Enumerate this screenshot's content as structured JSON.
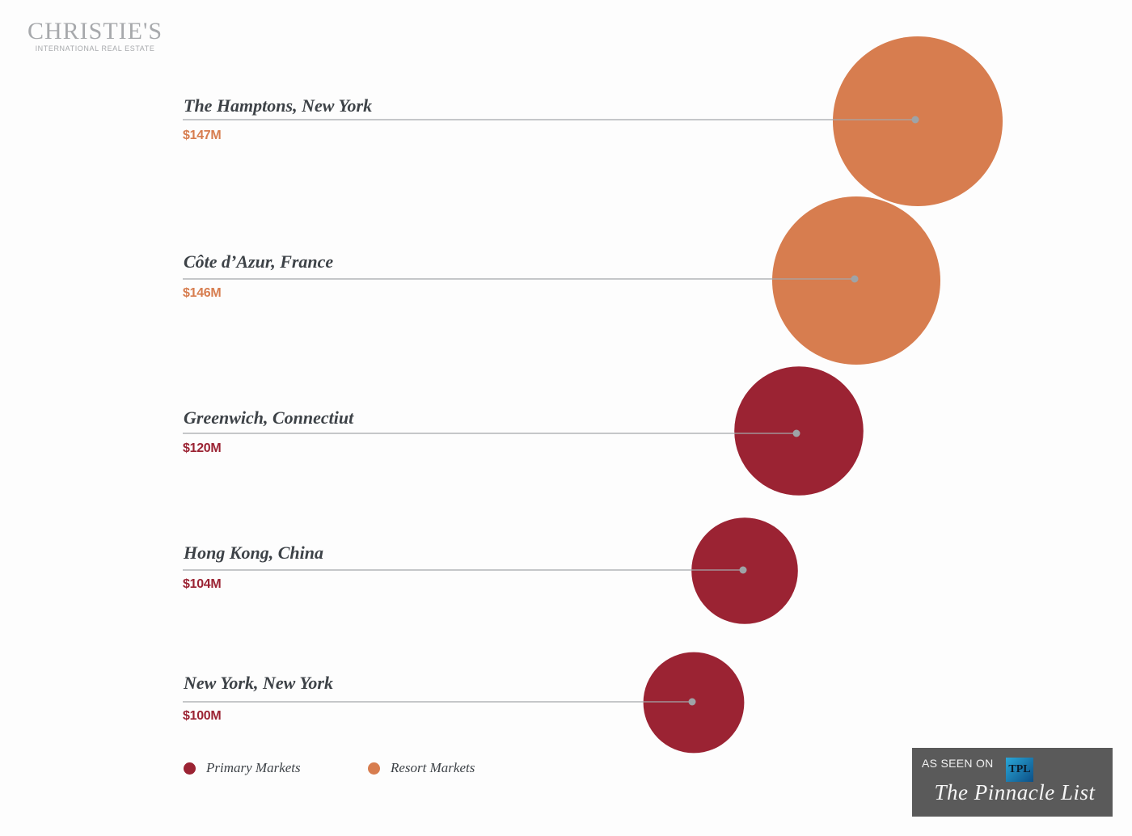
{
  "logo": {
    "brand": "CHRISTIE'S",
    "sub": "INTERNATIONAL REAL ESTATE"
  },
  "colors": {
    "primary": "#9b2333",
    "resort": "#d77d4f",
    "line": "#a4a7aa",
    "text": "#3d4247"
  },
  "chart_data": {
    "type": "bubble",
    "title": "",
    "unit": "$M",
    "series": [
      {
        "name": "Primary Markets",
        "color": "#9b2333"
      },
      {
        "name": "Resort Markets",
        "color": "#d77d4f"
      }
    ],
    "points": [
      {
        "location": "The Hamptons, New York",
        "value": 147,
        "label": "$147M",
        "series": "Resort Markets"
      },
      {
        "location": "Côte d’Azur, France",
        "value": 146,
        "label": "$146M",
        "series": "Resort Markets"
      },
      {
        "location": "Greenwich, Connectiut",
        "value": 120,
        "label": "$120M",
        "series": "Primary Markets"
      },
      {
        "location": "Hong Kong, China",
        "value": 104,
        "label": "$104M",
        "series": "Primary Markets"
      },
      {
        "location": "New York, New York",
        "value": 100,
        "label": "$100M",
        "series": "Primary Markets"
      }
    ]
  },
  "legend": {
    "primary": "Primary Markets",
    "resort": "Resort Markets"
  },
  "badge": {
    "as_seen_on": "AS SEEN ON",
    "monogram": "TPL",
    "name": "The Pinnacle List"
  }
}
